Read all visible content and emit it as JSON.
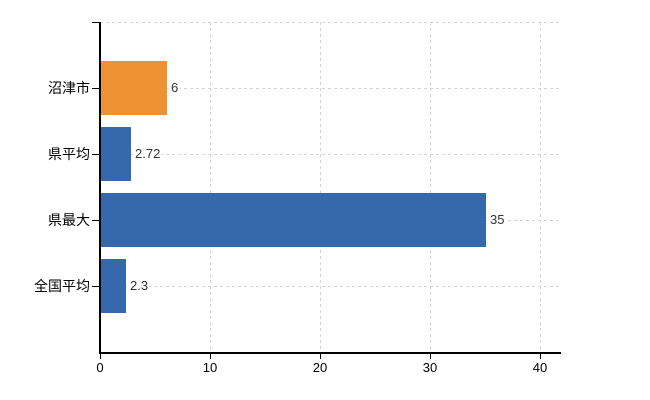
{
  "chart_data": {
    "type": "bar",
    "orientation": "horizontal",
    "title": "",
    "xlabel": "",
    "ylabel": "",
    "categories": [
      "沼津市",
      "県平均",
      "県最大",
      "全国平均"
    ],
    "values": [
      6,
      2.72,
      35,
      2.3
    ],
    "value_labels": [
      "6",
      "2.72",
      "35",
      "2.3"
    ],
    "bar_colors": [
      "#EE9334",
      "#3669AC",
      "#3669AC",
      "#3669AC"
    ],
    "highlight_color": "#EE9334",
    "default_color": "#3669AC",
    "x_ticks": [
      0,
      10,
      20,
      30,
      40
    ],
    "xlim": [
      0,
      41.8
    ],
    "grid": true,
    "gridline_style": "dashed",
    "gridline_color": "#D5D5D5",
    "axis_color": "#000000",
    "value_label_color": "#333333",
    "background": "#FFFFFF",
    "legend": "none"
  }
}
